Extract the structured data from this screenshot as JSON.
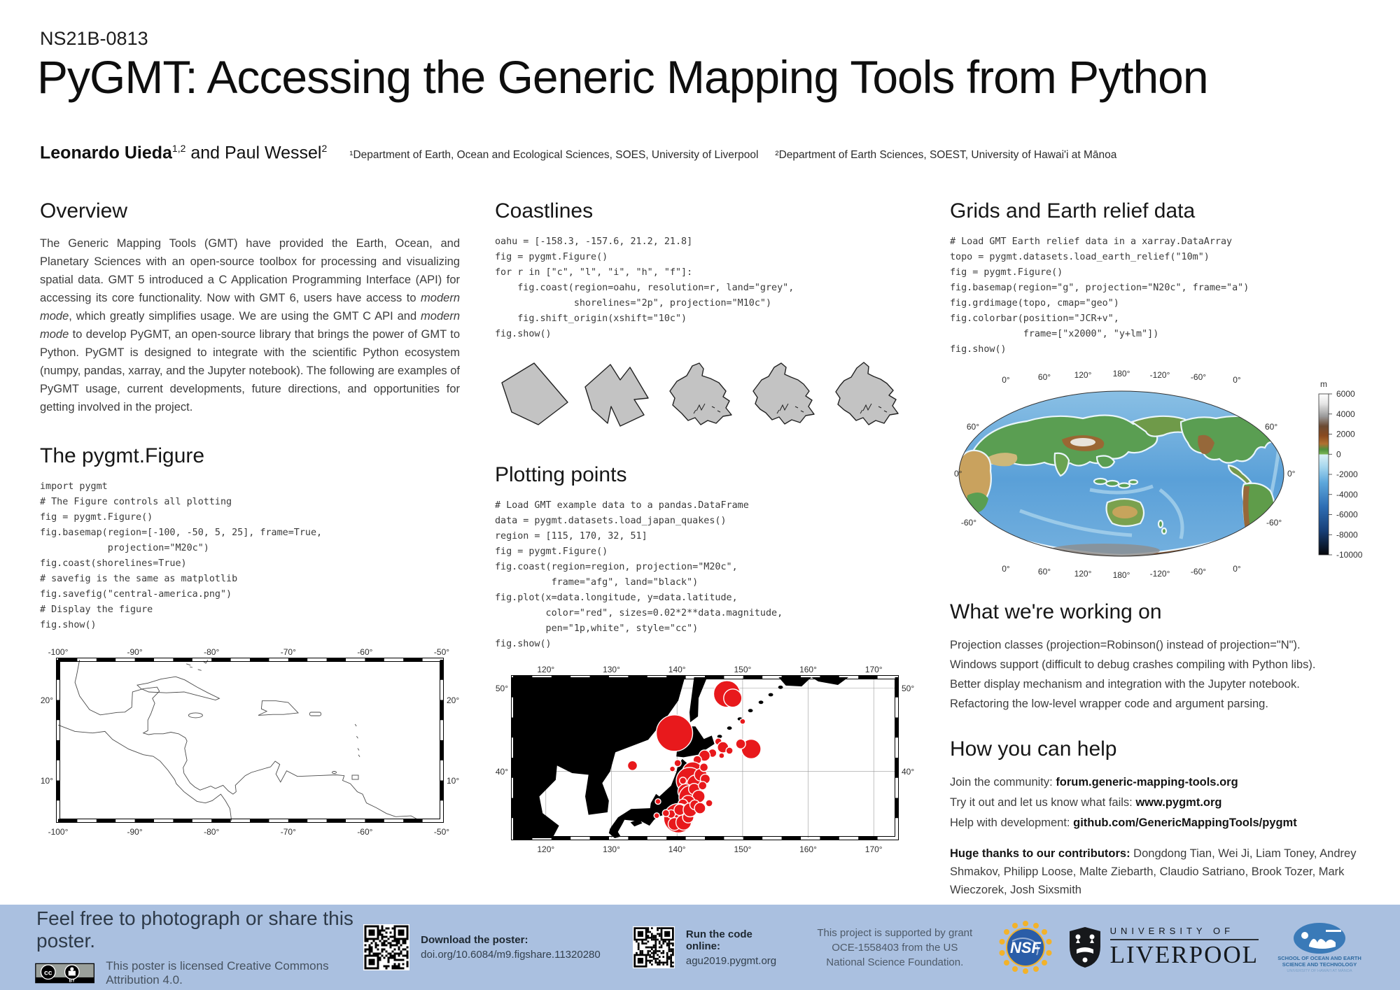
{
  "poster": {
    "session_code": "NS21B-0813",
    "title": "PyGMT: Accessing the Generic Mapping Tools from Python",
    "authors": {
      "author1": "Leonardo Uieda",
      "author1_sup": "1,2",
      "author2": " and Paul Wessel",
      "author2_sup": "2",
      "affil1": "¹Department of Earth, Ocean and Ecological Sciences, SOES, University of Liverpool",
      "affil2": "²Department of Earth Sciences, SOEST, University of Hawai'i at Mānoa"
    }
  },
  "sections": {
    "overview": {
      "heading": "Overview",
      "p1": "The Generic Mapping Tools (GMT) have provided the Earth, Ocean, and Planetary Sciences with an open-source toolbox for processing and visualizing spatial data. GMT 5 introduced a C Application Programming Interface (API) for accessing its core functionality. Now with GMT 6, users have access to ",
      "i1": "modern mode",
      "p2": ", which greatly simplifies usage. We are using the GMT C API and ",
      "i2": "modern mode",
      "p3": " to develop PyGMT, an open-source library that brings the power of GMT to Python. PyGMT is designed to integrate with the scientific Python ecosystem (numpy, pandas, xarray, and the Jupyter notebook). The following are examples of PyGMT usage, current developments, future directions, and opportunities for getting involved in the project."
    },
    "pygmt_figure": {
      "heading": "The pygmt.Figure",
      "code": "import pygmt\n# The Figure controls all plotting\nfig = pygmt.Figure()\nfig.basemap(region=[-100, -50, 5, 25], frame=True,\n            projection=\"M20c\")\nfig.coast(shorelines=True)\n# savefig is the same as matplotlib\nfig.savefig(\"central-america.png\")\n# Display the figure\nfig.show()"
    },
    "coastlines": {
      "heading": "Coastlines",
      "code": "oahu = [-158.3, -157.6, 21.2, 21.8]\nfig = pygmt.Figure()\nfor r in [\"c\", \"l\", \"i\", \"h\", \"f\"]:\n    fig.coast(region=oahu, resolution=r, land=\"grey\",\n              shorelines=\"2p\", projection=\"M10c\")\n    fig.shift_origin(xshift=\"10c\")\nfig.show()"
    },
    "plotting_points": {
      "heading": "Plotting points",
      "code": "# Load GMT example data to a pandas.DataFrame\ndata = pygmt.datasets.load_japan_quakes()\nregion = [115, 170, 32, 51]\nfig = pygmt.Figure()\nfig.coast(region=region, projection=\"M20c\",\n          frame=\"afg\", land=\"black\")\nfig.plot(x=data.longitude, y=data.latitude,\n         color=\"red\", sizes=0.02*2**data.magnitude,\n         pen=\"1p,white\", style=\"cc\")\nfig.show()"
    },
    "grids": {
      "heading": "Grids and Earth relief data",
      "code": "# Load GMT Earth relief data in a xarray.DataArray\ntopo = pygmt.datasets.load_earth_relief(\"10m\")\nfig = pygmt.Figure()\nfig.basemap(region=\"g\", projection=\"N20c\", frame=\"a\")\nfig.grdimage(topo, cmap=\"geo\")\nfig.colorbar(position=\"JCR+v\",\n             frame=[\"x2000\", \"y+lm\"])\nfig.show()"
    },
    "working_on": {
      "heading": "What we're working on",
      "items": [
        "Projection classes (projection=Robinson() instead of projection=\"N\").",
        "Windows support (difficult to debug crashes compiling with Python libs).",
        "Better display mechanism and integration with the Jupyter notebook.",
        "Refactoring the low-level wrapper code and argument parsing."
      ]
    },
    "help": {
      "heading": "How you can help",
      "lines": [
        {
          "label": "Join the community:  ",
          "link": "forum.generic-mapping-tools.org"
        },
        {
          "label": "Try it out and let us know what fails: ",
          "link": "www.pygmt.org"
        },
        {
          "label": "Help with development: ",
          "link": "github.com/GenericMappingTools/pygmt"
        }
      ],
      "thanks_label": "Huge thanks to our contributors: ",
      "thanks_names": "Dongdong Tian, Wei Ji, Liam Toney, Andrey Shmakov, Philipp Loose, Malte Ziebarth, Claudio Satriano, Brook Tozer, Mark Wieczorek, Josh Sixsmith"
    }
  },
  "figures": {
    "central_america": {
      "x_ticks": [
        "-100°",
        "-90°",
        "-80°",
        "-70°",
        "-60°",
        "-50°"
      ],
      "y_ticks": [
        "20°",
        "10°"
      ]
    },
    "oahu": {
      "resolutions": [
        "c",
        "l",
        "i",
        "h",
        "f"
      ],
      "land_fill": "#c3c3c3",
      "polygons": [
        "8,34 54,6 102,62 60,94 22,76",
        "8,40 44,8 58,30 72,12 98,56 78,58 92,80 58,96 45,68 40,92 18,72",
        "10,46 20,32 34,24 42,10 52,6 58,14 56,24 68,28 80,34 90,46 86,54 95,60 90,70 98,80 86,82 76,92 64,88 54,94 46,84 36,88 27,78 14,66 17,56",
        "10,46 16,38 22,30 32,25 40,12 50,6 57,12 55,22 64,26 74,30 82,36 90,46 85,53 94,59 89,68 97,79 85,81 77,91 65,87 55,93 47,83 37,87 28,77 20,72 13,64 16,55",
        "9,47 15,38 21,31 31,26 39,13 49,5 56,11 55,21 63,25 73,29 82,35 91,45 85,52 95,58 90,67 98,78 86,80 78,92 66,88 56,94 48,84 38,88 29,78 21,73 12,65 15,56"
      ]
    },
    "japan": {
      "x_ticks": [
        "120°",
        "130°",
        "140°",
        "150°",
        "160°",
        "170°"
      ],
      "y_ticks": [
        "50°",
        "40°"
      ],
      "land_color": "#000000",
      "point_color": "#e8191c",
      "bubbles": [
        [
          139.6,
          44.6,
          26
        ],
        [
          147.6,
          49.3,
          19
        ],
        [
          148.5,
          48.8,
          13
        ],
        [
          151.3,
          42.7,
          14
        ],
        [
          149.7,
          43.3,
          7
        ],
        [
          146.3,
          43.6,
          5
        ],
        [
          147.0,
          42.9,
          8
        ],
        [
          145.4,
          42.2,
          6
        ],
        [
          144.2,
          41.9,
          8
        ],
        [
          143.1,
          41.4,
          6
        ],
        [
          142.4,
          39.9,
          15
        ],
        [
          141.9,
          38.9,
          19
        ],
        [
          142.9,
          38.5,
          13
        ],
        [
          143.6,
          39.6,
          9
        ],
        [
          144.3,
          39.1,
          7
        ],
        [
          144.1,
          40.5,
          6
        ],
        [
          141.3,
          37.6,
          11
        ],
        [
          142.1,
          36.9,
          17
        ],
        [
          142.6,
          37.9,
          8
        ],
        [
          143.3,
          37.0,
          9
        ],
        [
          141.7,
          36.3,
          10
        ],
        [
          140.9,
          36.1,
          7
        ],
        [
          143.9,
          38.3,
          6
        ],
        [
          140.9,
          38.9,
          5
        ],
        [
          140.1,
          41.0,
          5
        ],
        [
          139.3,
          40.3,
          4
        ],
        [
          140.2,
          34.4,
          21
        ],
        [
          139.6,
          33.7,
          9
        ],
        [
          141.0,
          33.9,
          11
        ],
        [
          141.7,
          34.5,
          8
        ],
        [
          139.1,
          34.9,
          6
        ],
        [
          138.3,
          35.0,
          5
        ],
        [
          140.4,
          35.4,
          8
        ],
        [
          142.0,
          35.4,
          10
        ],
        [
          142.7,
          36.0,
          7
        ],
        [
          143.5,
          35.6,
          8
        ],
        [
          136.9,
          34.7,
          4
        ],
        [
          133.2,
          40.7,
          7
        ],
        [
          137.1,
          36.4,
          4
        ],
        [
          144.9,
          36.2,
          5
        ],
        [
          146.8,
          41.9,
          4
        ],
        [
          148.0,
          42.5,
          5
        ],
        [
          150.0,
          46.0,
          4
        ]
      ]
    },
    "relief": {
      "x_ticks": [
        "0°",
        "60°",
        "120°",
        "180°",
        "-120°",
        "-60°",
        "0°"
      ],
      "y_ticks": [
        "60°",
        "0°",
        "-60°"
      ],
      "colorbar": {
        "unit": "m",
        "ticks": [
          "6000",
          "4000",
          "2000",
          "0",
          "-2000",
          "-4000",
          "-6000",
          "-8000",
          "-10000"
        ]
      }
    }
  },
  "footer": {
    "share": "Feel free to photograph or share this poster.",
    "badge_by": "BY",
    "license": "This poster is licensed Creative Commons Attribution 4.0.",
    "download_label": "Download the poster:",
    "download_url": "doi.org/10.6084/m9.figshare.11320280",
    "run_label": "Run the code online:",
    "run_url": "agu2019.pygmt.org",
    "support": "This project is supported by grant OCE-1558403 from the US National Science Foundation.",
    "nsf_text": "NSF",
    "liverpool_line1": "UNIVERSITY OF",
    "liverpool_line2": "LIVERPOOL",
    "soest_line1": "SCHOOL OF OCEAN AND EARTH",
    "soest_line2": "SCIENCE AND TECHNOLOGY",
    "soest_line3": "UNIVERSITY OF HAWAI'I AT MĀNOA"
  },
  "colors": {
    "footer_bg": "#aac0e0",
    "quake_red": "#e8191c",
    "land_black": "#000000",
    "coast_grey": "#c3c3c3",
    "nsf_blue": "#2a5da8",
    "nsf_gold": "#f3b229",
    "soest_blue": "#3a7ab8"
  }
}
